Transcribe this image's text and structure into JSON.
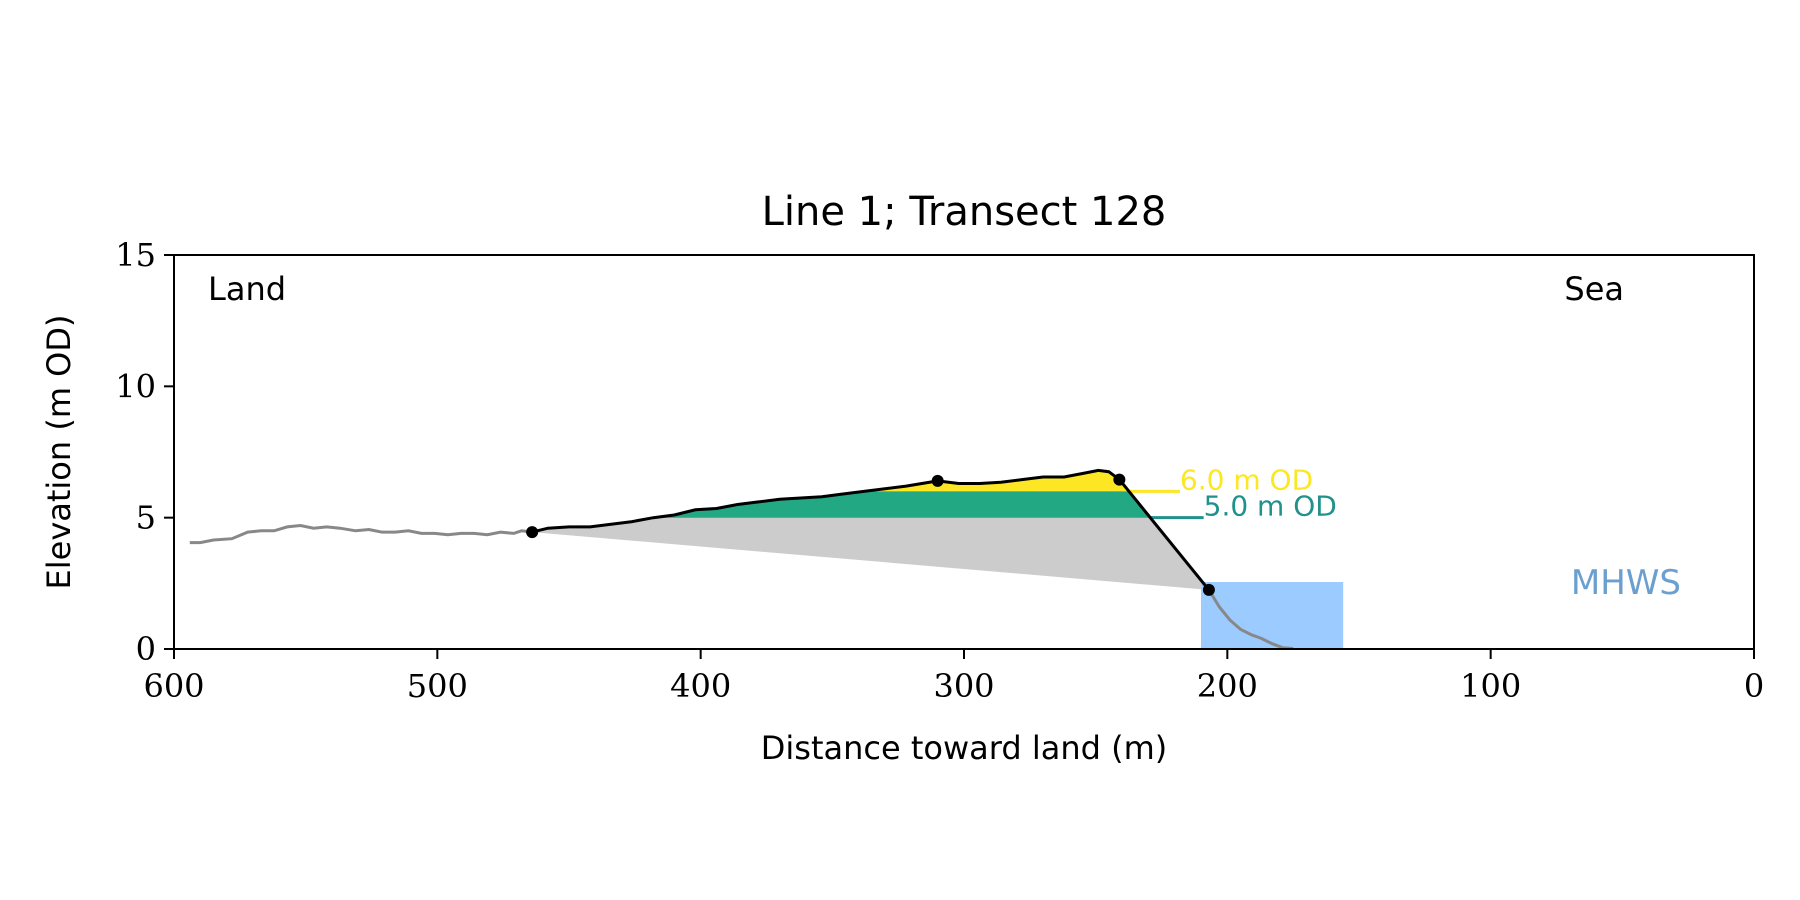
{
  "chart_data": {
    "type": "area",
    "title": "Line 1; Transect 128",
    "xlabel": "Distance toward land (m)",
    "ylabel": "Elevation (m OD)",
    "xlim": [
      600,
      0
    ],
    "ylim": [
      0,
      15
    ],
    "x_ticks": [
      600,
      500,
      400,
      300,
      200,
      100,
      0
    ],
    "y_ticks": [
      0,
      5,
      10,
      15
    ],
    "grid": false,
    "legend": "none",
    "annotations": {
      "land_label": "Land",
      "sea_label": "Sea",
      "mhws_label": "MHWS",
      "level_6_label": "6.0 m OD",
      "level_5_label": "5.0 m OD"
    },
    "colors": {
      "profile_gray": "#888888",
      "profile_black": "#000000",
      "fill_gray": "#cccccc",
      "fill_green": "#23a884",
      "fill_yellow": "#fde725",
      "level_6_color": "#fde725",
      "level_5_color": "#21918c",
      "mhws_fill": "#9ccbff",
      "mhws_text": "#6a9fcf"
    },
    "mhws": {
      "x_range": [
        210,
        156
      ],
      "elevation": 2.55
    },
    "levels": [
      {
        "elevation": 6.0,
        "x_end": 218
      },
      {
        "elevation": 5.0,
        "x_end": 209
      }
    ],
    "key_points": [
      {
        "x": 464,
        "y": 4.45
      },
      {
        "x": 310,
        "y": 6.4
      },
      {
        "x": 241,
        "y": 6.45
      },
      {
        "x": 207,
        "y": 2.25
      }
    ],
    "profile_land": [
      [
        594,
        4.05
      ],
      [
        590,
        4.05
      ],
      [
        585,
        4.15
      ],
      [
        578,
        4.2
      ],
      [
        572,
        4.45
      ],
      [
        567,
        4.5
      ],
      [
        562,
        4.5
      ],
      [
        557,
        4.65
      ],
      [
        552,
        4.7
      ],
      [
        547,
        4.6
      ],
      [
        542,
        4.65
      ],
      [
        537,
        4.6
      ],
      [
        531,
        4.5
      ],
      [
        526,
        4.55
      ],
      [
        521,
        4.45
      ],
      [
        516,
        4.45
      ],
      [
        511,
        4.5
      ],
      [
        506,
        4.4
      ],
      [
        501,
        4.4
      ],
      [
        496,
        4.35
      ],
      [
        491,
        4.4
      ],
      [
        486,
        4.4
      ],
      [
        481,
        4.35
      ],
      [
        476,
        4.45
      ],
      [
        471,
        4.4
      ],
      [
        468,
        4.5
      ],
      [
        464,
        4.45
      ]
    ],
    "profile_dune": [
      [
        464,
        4.45
      ],
      [
        458,
        4.6
      ],
      [
        450,
        4.65
      ],
      [
        442,
        4.65
      ],
      [
        434,
        4.75
      ],
      [
        426,
        4.85
      ],
      [
        418,
        5.0
      ],
      [
        410,
        5.1
      ],
      [
        402,
        5.3
      ],
      [
        394,
        5.35
      ],
      [
        386,
        5.5
      ],
      [
        378,
        5.6
      ],
      [
        370,
        5.7
      ],
      [
        362,
        5.75
      ],
      [
        354,
        5.8
      ],
      [
        346,
        5.9
      ],
      [
        338,
        6.0
      ],
      [
        330,
        6.1
      ],
      [
        322,
        6.2
      ],
      [
        316,
        6.3
      ],
      [
        310,
        6.4
      ],
      [
        302,
        6.3
      ],
      [
        294,
        6.3
      ],
      [
        286,
        6.35
      ],
      [
        278,
        6.45
      ],
      [
        270,
        6.55
      ],
      [
        262,
        6.55
      ],
      [
        254,
        6.7
      ],
      [
        249,
        6.8
      ],
      [
        245,
        6.75
      ],
      [
        241,
        6.45
      ]
    ],
    "profile_face": [
      [
        241,
        6.45
      ],
      [
        207,
        2.25
      ]
    ],
    "profile_toe": [
      [
        207,
        2.25
      ],
      [
        203,
        1.6
      ],
      [
        199,
        1.1
      ],
      [
        195,
        0.75
      ],
      [
        191,
        0.55
      ],
      [
        187,
        0.4
      ],
      [
        183,
        0.2
      ],
      [
        179,
        0.05
      ],
      [
        175,
        0.02
      ]
    ]
  }
}
